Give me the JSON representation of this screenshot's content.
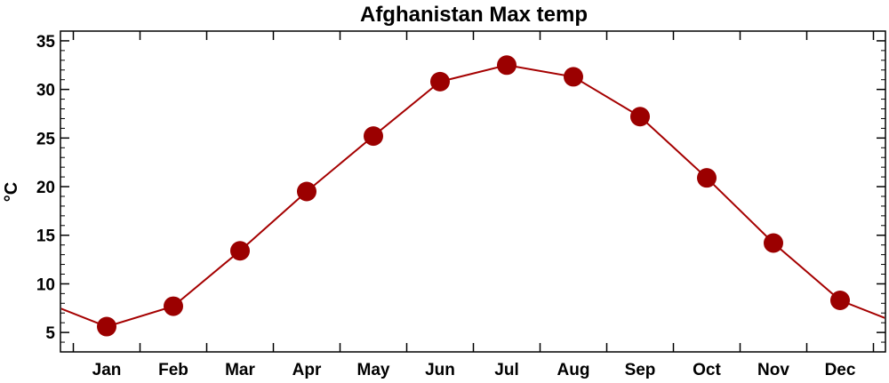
{
  "chart_data": {
    "type": "line",
    "title": "Afghanistan Max temp",
    "xlabel": "",
    "ylabel": "°C",
    "categories": [
      "Jan",
      "Feb",
      "Mar",
      "Apr",
      "May",
      "Jun",
      "Jul",
      "Aug",
      "Sep",
      "Oct",
      "Nov",
      "Dec"
    ],
    "series": [
      {
        "values": [
          5.6,
          7.7,
          13.4,
          19.5,
          25.2,
          30.8,
          32.5,
          31.3,
          27.2,
          20.9,
          14.2,
          8.3
        ]
      }
    ],
    "ylim": [
      3,
      36
    ],
    "yticks": [
      5,
      10,
      15,
      20,
      25,
      30,
      35
    ],
    "line_color": "#a50000",
    "marker_color": "#9b0000",
    "grid": false,
    "legend": "none"
  }
}
